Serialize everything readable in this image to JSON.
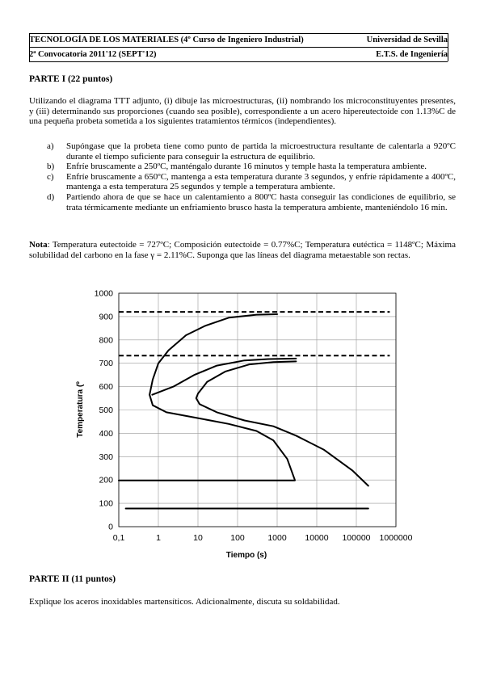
{
  "header": {
    "course": "TECNOLOGÍA DE LOS MATERIALES (4º Curso de Ingeniero Industrial)",
    "university": "Universidad de Sevilla",
    "session": "2ª Convocatoria 2011'12 (SEPT'12)",
    "school": "E.T.S. de Ingeniería"
  },
  "part1": {
    "title": "PARTE I (22 puntos)",
    "intro": "Utilizando el diagrama TTT adjunto, (i) dibuje las microestructuras, (ii) nombrando los microconstituyentes presentes, y (iii) determinando sus proporciones (cuando sea posible), correspondiente a un acero hipereutectoide con 1.13%C de una pequeña probeta sometida a los siguientes tratamientos térmicos (independientes).",
    "items": [
      {
        "letter": "a)",
        "text": "Supóngase que la probeta tiene como punto de partida la microestructura resultante de calentarla a 920ºC durante el tiempo suficiente para conseguir la estructura de equilibrio."
      },
      {
        "letter": "b)",
        "text": "Enfríe bruscamente a 250ºC, manténgalo durante 16 minutos y temple hasta la temperatura ambiente."
      },
      {
        "letter": "c)",
        "text": "Enfríe bruscamente a 650ºC, mantenga a esta temperatura durante 3 segundos, y enfríe rápidamente a 400ºC, mantenga a esta temperatura 25 segundos y temple a temperatura ambiente."
      },
      {
        "letter": "d)",
        "text": "Partiendo ahora de que se hace un calentamiento a 800ºC hasta conseguir las condiciones de equilibrio, se trata térmicamente mediante un enfriamiento brusco hasta la temperatura ambiente, manteniéndolo 16 min."
      }
    ],
    "note_label": "Nota",
    "note_text": ": Temperatura eutectoide = 727ºC; Composición eutectoide = 0.77%C; Temperatura eutéctica = 1148ºC; Máxima solubilidad del carbono en la fase γ = 2.11%C. Suponga que las líneas del diagrama metaestable son rectas."
  },
  "chart_data": {
    "type": "line",
    "xlabel": "Tiempo (s)",
    "ylabel": "Temperatura (º",
    "xscale": "log",
    "xlim": [
      0.1,
      1000000
    ],
    "ylim": [
      0,
      1000
    ],
    "x_ticks": [
      "0,1",
      "1",
      "10",
      "100",
      "1000",
      "10000",
      "100000",
      "1000000"
    ],
    "y_ticks": [
      "0",
      "100",
      "200",
      "300",
      "400",
      "500",
      "600",
      "700",
      "800",
      "900",
      "1000"
    ],
    "grid": true,
    "series": [
      {
        "style": "dashed",
        "points": [
          [
            0.1,
            920
          ],
          [
            700000,
            920
          ]
        ]
      },
      {
        "style": "dashed",
        "points": [
          [
            0.1,
            733
          ],
          [
            700000,
            733
          ]
        ]
      },
      {
        "style": "solid",
        "points": [
          [
            1000,
            910
          ],
          [
            300,
            908
          ],
          [
            60,
            895
          ],
          [
            15,
            860
          ],
          [
            5,
            820
          ],
          [
            1.8,
            755
          ],
          [
            1,
            700
          ],
          [
            0.72,
            630
          ],
          [
            0.6,
            565
          ],
          [
            0.72,
            520
          ],
          [
            1.6,
            490
          ],
          [
            10,
            465
          ],
          [
            60,
            440
          ],
          [
            300,
            410
          ],
          [
            800,
            370
          ],
          [
            1800,
            290
          ],
          [
            2800,
            200
          ]
        ]
      },
      {
        "style": "solid",
        "points": [
          [
            3000,
            720
          ],
          [
            600,
            718
          ],
          [
            150,
            712
          ],
          [
            30,
            690
          ],
          [
            8,
            650
          ],
          [
            2.4,
            600
          ],
          [
            0.7,
            565
          ]
        ]
      },
      {
        "style": "solid",
        "points": [
          [
            3000,
            708
          ],
          [
            800,
            705
          ],
          [
            200,
            695
          ],
          [
            50,
            665
          ],
          [
            17,
            620
          ],
          [
            10,
            570
          ],
          [
            9,
            550
          ],
          [
            11,
            525
          ],
          [
            30,
            490
          ],
          [
            150,
            455
          ],
          [
            800,
            430
          ],
          [
            3000,
            390
          ],
          [
            15000,
            330
          ],
          [
            80000,
            240
          ],
          [
            200000,
            175
          ]
        ]
      },
      {
        "style": "solid",
        "points": [
          [
            0.1,
            198
          ],
          [
            2800,
            198
          ]
        ]
      },
      {
        "style": "solid",
        "points": [
          [
            0.15,
            78
          ],
          [
            200000,
            78
          ]
        ]
      }
    ]
  },
  "part2": {
    "title": "PARTE II (11 puntos)",
    "text": "Explique los aceros inoxidables martensíticos. Adicionalmente, discuta su soldabilidad."
  }
}
